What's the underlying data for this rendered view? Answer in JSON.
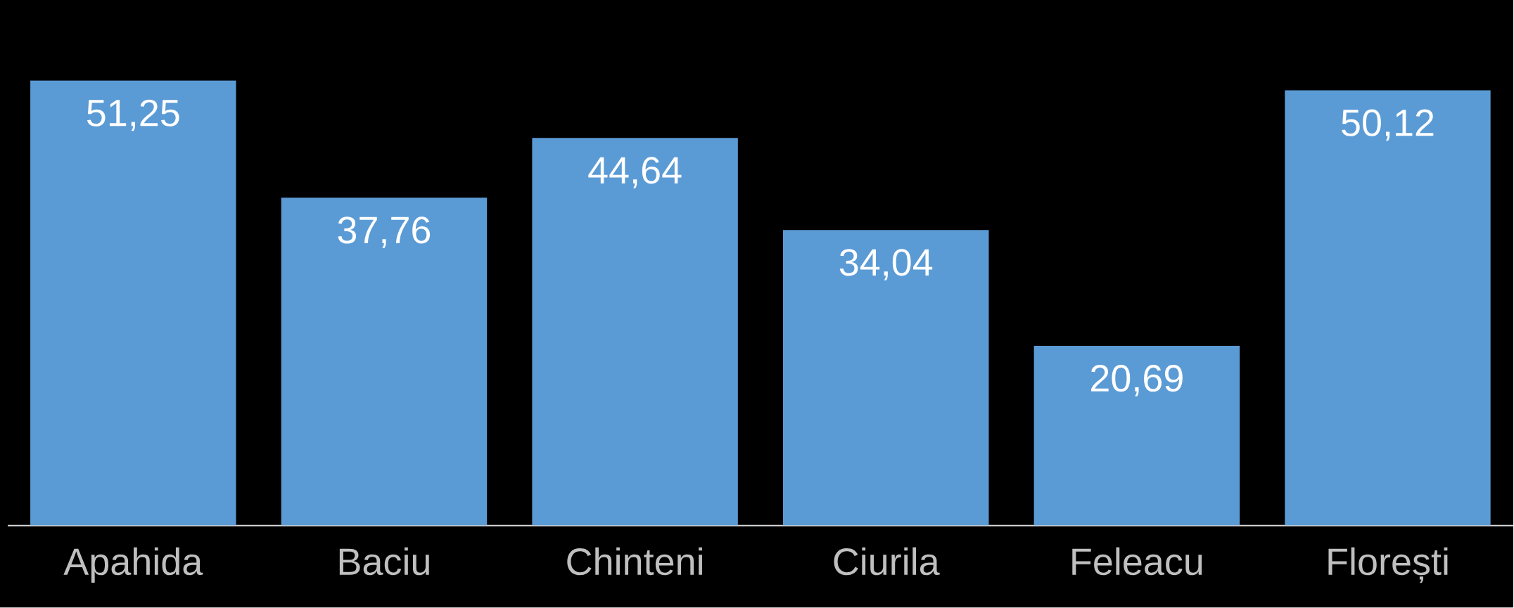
{
  "chart_data": {
    "type": "bar",
    "categories": [
      "Apahida",
      "Baciu",
      "Chinteni",
      "Ciurila",
      "Feleacu",
      "Florești"
    ],
    "values": [
      51.25,
      37.76,
      44.64,
      34.04,
      20.69,
      50.12
    ],
    "value_labels": [
      "51,25",
      "37,76",
      "44,64",
      "34,04",
      "20,69",
      "50,12"
    ],
    "color": "#5b9bd5"
  }
}
